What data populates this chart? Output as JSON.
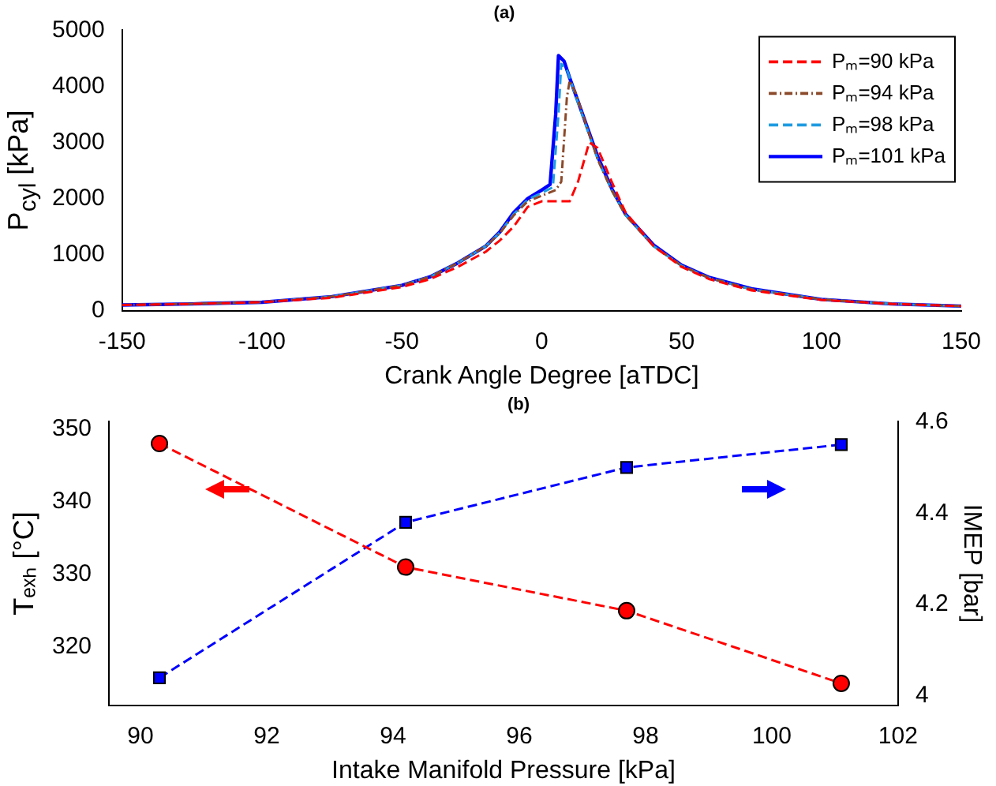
{
  "chart_data": [
    {
      "type": "line",
      "title": "(a)",
      "xlabel": "Crank Angle Degree [aTDC]",
      "ylabel": "P$_{cyl}$ [kPa]",
      "xlim": [
        -150,
        150
      ],
      "xticks": [
        -150,
        -100,
        -50,
        0,
        50,
        100,
        150
      ],
      "ylim": [
        0,
        5000
      ],
      "yticks": [
        0,
        1000,
        2000,
        3000,
        4000,
        5000
      ],
      "grid": false,
      "legend": "top right",
      "marker": "none",
      "series": [
        {
          "name": "Pₘ=90 kPa",
          "color": "#ff0000",
          "line_style": "dashed",
          "x": [
            -150,
            -125,
            -100,
            -75,
            -50,
            -40,
            -30,
            -20,
            -15,
            -10,
            -5,
            0,
            5,
            10,
            13,
            17,
            20,
            25,
            30,
            40,
            50,
            60,
            75,
            100,
            125,
            150
          ],
          "values": [
            100,
            120,
            150,
            230,
            420,
            560,
            780,
            1050,
            1250,
            1500,
            1850,
            1950,
            1950,
            1950,
            2300,
            3000,
            2900,
            2300,
            1750,
            1150,
            780,
            560,
            360,
            190,
            120,
            80
          ]
        },
        {
          "name": "Pₘ=94 kPa",
          "color": "#8b4a2b",
          "line_style": "dotted",
          "x": [
            -150,
            -125,
            -100,
            -75,
            -50,
            -40,
            -30,
            -20,
            -15,
            -10,
            -5,
            0,
            5,
            7,
            9,
            10,
            12,
            15,
            20,
            25,
            30,
            40,
            50,
            60,
            75,
            100,
            125,
            150
          ],
          "values": [
            100,
            120,
            150,
            250,
            450,
            600,
            850,
            1150,
            1380,
            1700,
            1950,
            2050,
            2150,
            2300,
            3800,
            4100,
            3900,
            3450,
            2700,
            2150,
            1700,
            1150,
            800,
            580,
            380,
            200,
            120,
            80
          ]
        },
        {
          "name": "Pₘ=98 kPa",
          "color": "#1e9be0",
          "line_style": "dashed",
          "x": [
            -150,
            -125,
            -100,
            -75,
            -50,
            -40,
            -30,
            -20,
            -15,
            -10,
            -5,
            0,
            4,
            6,
            7,
            9,
            12,
            15,
            20,
            25,
            30,
            40,
            50,
            60,
            75,
            100,
            125,
            150
          ],
          "values": [
            100,
            120,
            150,
            250,
            450,
            600,
            850,
            1150,
            1390,
            1720,
            1980,
            2100,
            2200,
            3500,
            4400,
            4300,
            3850,
            3420,
            2700,
            2150,
            1700,
            1150,
            800,
            580,
            380,
            200,
            120,
            80
          ]
        },
        {
          "name": "Pₘ=101 kPa",
          "color": "#0000ff",
          "line_style": "solid",
          "x": [
            -150,
            -125,
            -100,
            -75,
            -50,
            -40,
            -30,
            -20,
            -15,
            -10,
            -5,
            0,
            3,
            5,
            6,
            8,
            10,
            15,
            20,
            25,
            30,
            40,
            50,
            60,
            75,
            100,
            125,
            150
          ],
          "values": [
            100,
            120,
            150,
            250,
            450,
            600,
            850,
            1150,
            1400,
            1750,
            2000,
            2150,
            2250,
            3500,
            4550,
            4450,
            4150,
            3450,
            2750,
            2180,
            1720,
            1170,
            810,
            590,
            390,
            200,
            120,
            80
          ]
        }
      ]
    },
    {
      "type": "line",
      "title": "(b)",
      "xlabel": "Intake Manifold Pressure [kPa]",
      "ylabel": "Tₑₓₕ [°C]",
      "y2label": "IMEP [bar]",
      "xlim": [
        89.5,
        102
      ],
      "xticks": [
        90,
        92,
        94,
        96,
        98,
        100,
        102
      ],
      "ylim": [
        312,
        351
      ],
      "yticks": [
        320,
        330,
        340,
        350
      ],
      "y2lim": [
        3.98,
        4.6
      ],
      "y2ticks": [
        4,
        4.2,
        4.4,
        4.6
      ],
      "grid": false,
      "legend": false,
      "x": [
        90.3,
        94.2,
        97.7,
        101.1
      ],
      "series": [
        {
          "color": "#ff0000",
          "line_style": "dashed",
          "marker": "circle",
          "values": [
            348,
            331,
            325,
            315
          ]
        },
        {
          "color": "#0000ff",
          "line_style": "dashed",
          "marker": "square",
          "axis": "y2",
          "values": [
            4.04,
            4.38,
            4.5,
            4.55
          ]
        }
      ]
    }
  ]
}
